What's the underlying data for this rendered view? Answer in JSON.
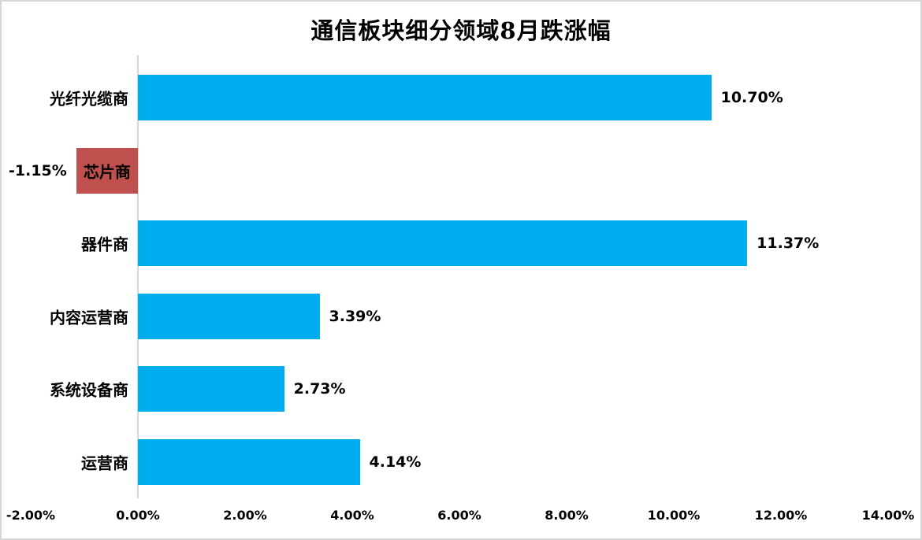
{
  "title": "通信板块细分领域8月跌涨幅",
  "colors": {
    "bar_positive": "#00AEEF",
    "bar_negative": "#C0504D",
    "axis_line": "#D6D6D6",
    "chart_border": "#D6D6D6",
    "text": "#000000",
    "background": "#FFFFFF"
  },
  "chart_data": {
    "type": "bar",
    "orientation": "horizontal",
    "title": "通信板块细分领域8月跌涨幅",
    "categories": [
      "光纤光缆商",
      "芯片商",
      "器件商",
      "内容运营商",
      "系统设备商",
      "运营商"
    ],
    "values": [
      10.7,
      -1.15,
      11.37,
      3.39,
      2.73,
      4.14
    ],
    "data_labels": [
      "10.70%",
      "-1.15%",
      "11.37%",
      "3.39%",
      "2.73%",
      "4.14%"
    ],
    "series_name": "",
    "xlabel": "",
    "ylabel": "",
    "xlim": [
      -2,
      14
    ],
    "x_tick_step": 2,
    "x_tick_labels": [
      "-2.00%",
      "0.00%",
      "2.00%",
      "4.00%",
      "6.00%",
      "8.00%",
      "10.00%",
      "12.00%",
      "14.00%"
    ],
    "grid": false,
    "legend": false,
    "negative_bar_category": "芯片商",
    "negative_bar_note": "negative bar drawn left of zero axis in red; its category label sits inside the bar and its value label sits left of the bar"
  }
}
